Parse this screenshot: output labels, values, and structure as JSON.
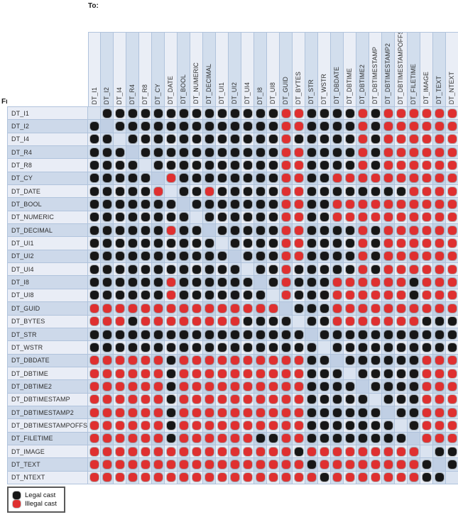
{
  "title_labels": {
    "to": "To:",
    "from": "From:"
  },
  "legend": {
    "items": [
      {
        "key": "legal",
        "label": "Legal cast",
        "color": "#171717"
      },
      {
        "key": "illegal",
        "label": "Illegal cast",
        "color": "#df3030"
      }
    ]
  },
  "colors": {
    "dot_legal": "#171717",
    "dot_illegal": "#df3030",
    "grid_line": "#b0c3dc",
    "cell_light": "#eaeef6",
    "cell_mixed": "#d2deed",
    "cell_dark": "#c2d2e5"
  },
  "chart_data": {
    "type": "heatmap",
    "x_axis_caption": "To:",
    "y_axis_caption": "From:",
    "legend": [
      "Legal cast",
      "Illegal cast"
    ],
    "cell_encoding": {
      "B": "Legal cast (black dot)",
      "R": "Illegal cast (red dot)",
      ".": "same type (blank diagonal cell)"
    },
    "x_labels": [
      "DT_I1",
      "DT_I2",
      "DT_I4",
      "DT_R4",
      "DT_R8",
      "DT_CY",
      "DT_DATE",
      "DT_BOOL",
      "DT_NUMERIC",
      "DT_DECIMAL",
      "DT_UI1",
      "DT_UI2",
      "DT_UI4",
      "DT_I8",
      "DT_UI8",
      "DT_GUID",
      "DT_BYTES",
      "DT_STR",
      "DT_WSTR",
      "DT_DBDATE",
      "DT_DBTIME",
      "DT_DBTIME2",
      "DT_DBTIMESTAMP",
      "DT_DBTIMESTAMP2",
      "DT_DBTIMESTAMPOFFSET",
      "DT_FILETIME",
      "DT_IMAGE",
      "DT_TEXT",
      "DT_NTEXT"
    ],
    "rows": [
      {
        "from": "DT_I1",
        "cells": ".BBBBBBBBBBBBBBRRBBBBRBRRRRRR"
      },
      {
        "from": "DT_I2",
        "cells": "B.BBBBBBBBBBBBBRRBBBBRBRRRRRR"
      },
      {
        "from": "DT_I4",
        "cells": "BB.BBBBBBBBBBBBRBBBBBRBRRRRRR"
      },
      {
        "from": "DT_R4",
        "cells": "BBB.BBBBBBBBBBBRRBBBBRBRRRRRR"
      },
      {
        "from": "DT_R8",
        "cells": "BBBB.BBBBBBBBBBRRBBBBRBRRRRRR"
      },
      {
        "from": "DT_CY",
        "cells": "BBBBB.RBBBBBBBBRRBBRRRRRRRRRR"
      },
      {
        "from": "DT_DATE",
        "cells": "BBBBBR.BBRBBBBBRRBBBBBBBBRRRR"
      },
      {
        "from": "DT_BOOL",
        "cells": "BBBBBBB.BBBBBBBRRBBRRRRRRRRRR"
      },
      {
        "from": "DT_NUMERIC",
        "cells": "BBBBBBBB.BBBBBBRRBBRRRRRRRRRR"
      },
      {
        "from": "DT_DECIMAL",
        "cells": "BBBBBBRBB.BBBBBRRBBBBRBRRRRRR"
      },
      {
        "from": "DT_UI1",
        "cells": "BBBBBBBBBB.BBBBRRBBBBRBRRRRRR"
      },
      {
        "from": "DT_UI2",
        "cells": "BBBBBBBBBBB.BBBRRBBBBRBRRRRRR"
      },
      {
        "from": "DT_UI4",
        "cells": "BBBBBBBBBBBB.BBRBBBBBRBRRRRRR"
      },
      {
        "from": "DT_I8",
        "cells": "BBBBBBRBBBBBB.BRBBBRRRRRRBRRR"
      },
      {
        "from": "DT_UI8",
        "cells": "BBBBBBRBBBBBBB.RBBBRRRRRRBRRR"
      },
      {
        "from": "DT_GUID",
        "cells": "RRRRRRRRRRRRRRR.BBBRRRRRRRRRR"
      },
      {
        "from": "DT_BYTES",
        "cells": "RRRBRRRRRRRRBBBB.BBRRRRRRRBBB"
      },
      {
        "from": "DT_STR",
        "cells": "BBBBBBBBBBBBBBBBB.BBBBBBBBBBB"
      },
      {
        "from": "DT_WSTR",
        "cells": "BBBBBBBBBBBBBBBBBB.BBBBBBBBBB"
      },
      {
        "from": "DT_DBDATE",
        "cells": "RRRRRRBRRRRRRRRRRBB.BBBBBBRRR"
      },
      {
        "from": "DT_DBTIME",
        "cells": "RRRRRRBRRRRRRRRRRBBB.BBBBBRRR"
      },
      {
        "from": "DT_DBTIME2",
        "cells": "RRRRRRBRRRRRRRRRRBBBB.BBBBRRR"
      },
      {
        "from": "DT_DBTIMESTAMP",
        "cells": "RRRRRRBRRRRRRRRRRBBBBB.BBBRRR"
      },
      {
        "from": "DT_DBTIMESTAMP2",
        "cells": "RRRRRRBRRRRRRRRRRBBBBBB.BBRRR"
      },
      {
        "from": "DT_DBTIMESTAMPOFFSET",
        "cells": "RRRRRRBRRRRRRRRRRBBBBBBB.BRRR"
      },
      {
        "from": "DT_FILETIME",
        "cells": "RRRRRRBRRRRRRBBRRBBBBBBBB.RRR"
      },
      {
        "from": "DT_IMAGE",
        "cells": "RRRRRRRRRRRRRRRRBRRRRRRRRR.BB"
      },
      {
        "from": "DT_TEXT",
        "cells": "RRRRRRRRRRRRRRRRRBRRRRRRRRB.B"
      },
      {
        "from": "DT_NTEXT",
        "cells": "RRRRRRRRRRRRRRRRRRBRRRRRRRBB."
      }
    ]
  }
}
